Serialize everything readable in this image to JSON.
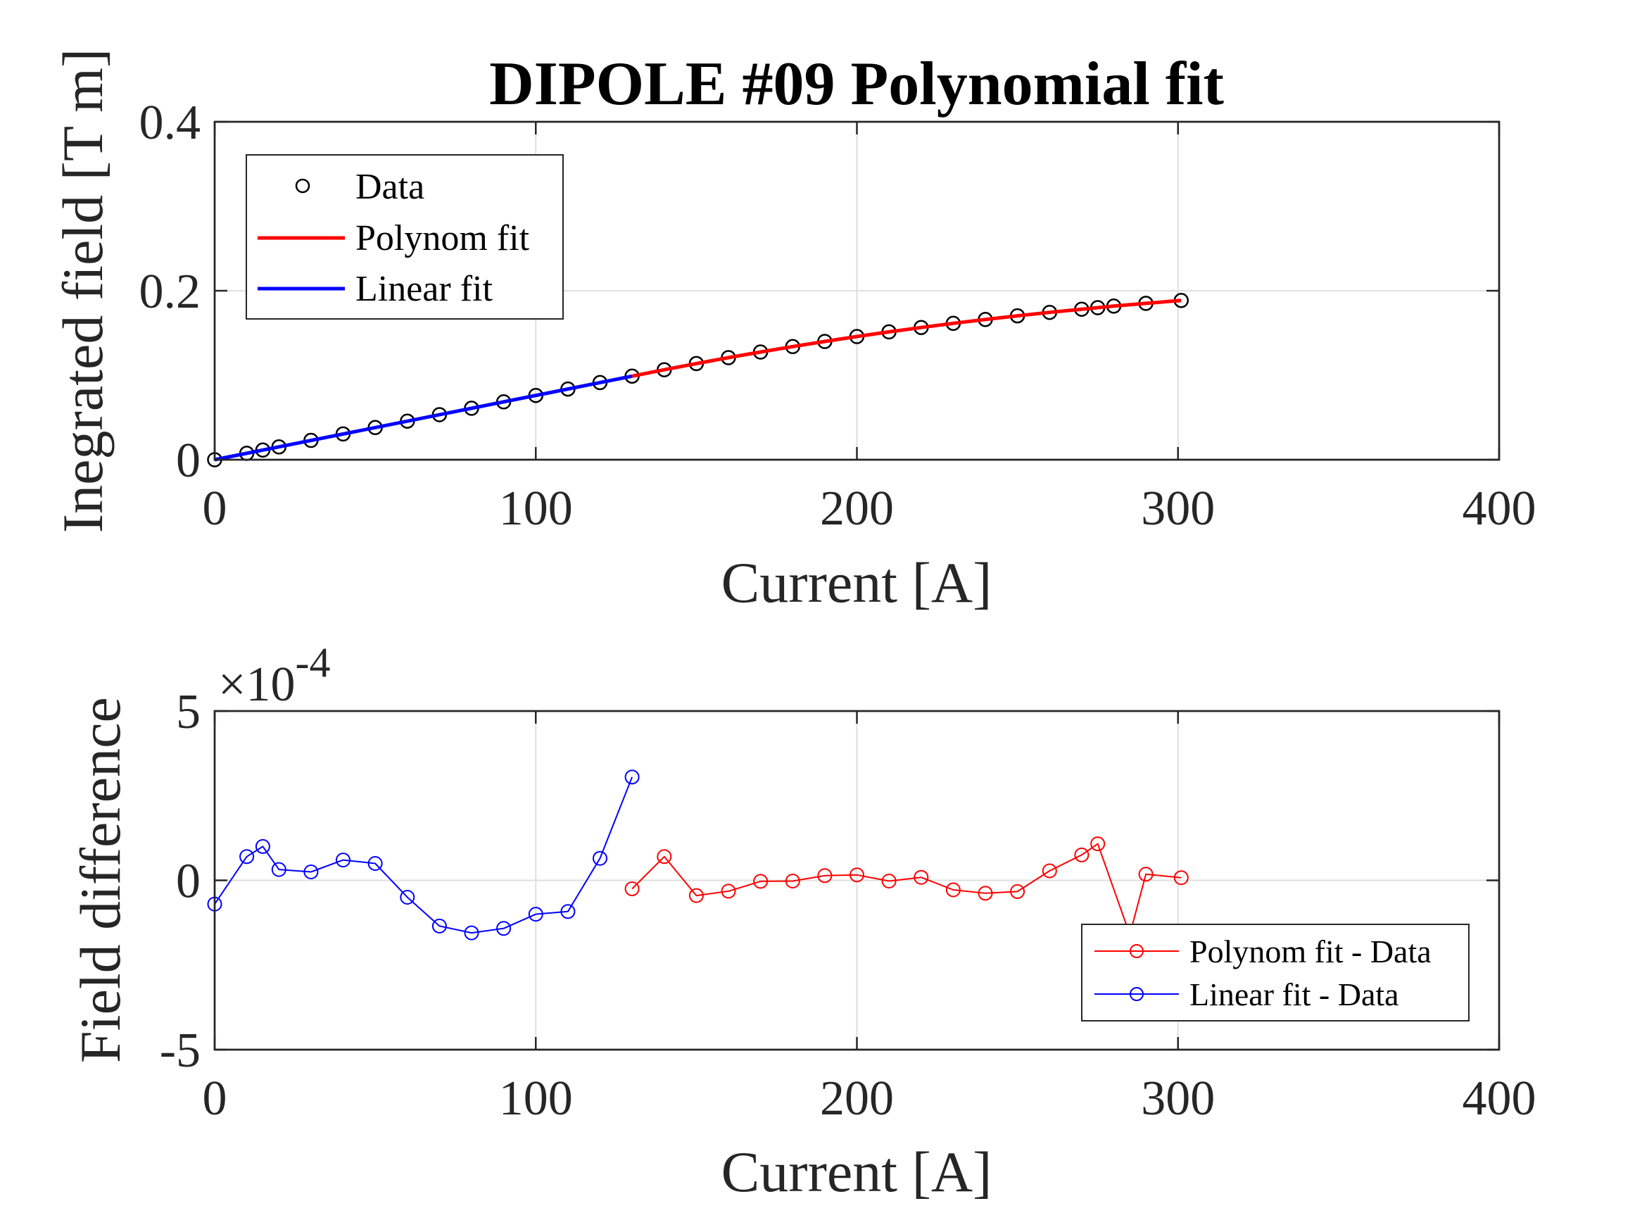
{
  "chart_data": [
    {
      "type": "line",
      "title": "DIPOLE #09 Polynomial fit",
      "xlabel": "Current [A]",
      "ylabel": "Inegrated field [T m]",
      "xlim": [
        0,
        400
      ],
      "ylim": [
        0,
        0.4
      ],
      "xticks": [
        "0",
        "100",
        "200",
        "300",
        "400"
      ],
      "yticks": [
        "0",
        "0.2",
        "0.4"
      ],
      "grid": true,
      "legend_position": "top-left",
      "series": [
        {
          "name": "Data",
          "style": "markers",
          "color": "#000000",
          "x": [
            0,
            10,
            15,
            20,
            30,
            40,
            50,
            60,
            70,
            80,
            90,
            100,
            110,
            120,
            130,
            140,
            150,
            160,
            170,
            180,
            190,
            200,
            210,
            220,
            230,
            240,
            250,
            260,
            270,
            275,
            280,
            290,
            301
          ],
          "y": [
            0.0,
            0.0076,
            0.0114,
            0.0152,
            0.0229,
            0.0305,
            0.0381,
            0.0457,
            0.0533,
            0.0609,
            0.0685,
            0.0761,
            0.0837,
            0.0913,
            0.0989,
            0.1065,
            0.1138,
            0.1208,
            0.1275,
            0.1339,
            0.14,
            0.1458,
            0.1513,
            0.1565,
            0.1614,
            0.166,
            0.1703,
            0.1744,
            0.1782,
            0.18,
            0.1818,
            0.1851,
            0.1885
          ]
        },
        {
          "name": "Polynom fit",
          "style": "line",
          "color": "#ff0000",
          "x": [
            130,
            140,
            150,
            160,
            170,
            180,
            190,
            200,
            210,
            220,
            230,
            240,
            250,
            260,
            270,
            280,
            290,
            301
          ],
          "y": [
            0.0989,
            0.1065,
            0.1138,
            0.1208,
            0.1275,
            0.1339,
            0.14,
            0.1458,
            0.1513,
            0.1565,
            0.1614,
            0.166,
            0.1703,
            0.1744,
            0.1782,
            0.1818,
            0.1851,
            0.1885
          ]
        },
        {
          "name": "Linear fit",
          "style": "line",
          "color": "#0000ff",
          "x": [
            0,
            130
          ],
          "y": [
            0.0,
            0.0989
          ]
        }
      ]
    },
    {
      "type": "line",
      "title": "",
      "xlabel": "Current [A]",
      "ylabel": "Field difference",
      "exponent_label": "×10",
      "exponent_power": "-4",
      "xlim": [
        0,
        400
      ],
      "ylim": [
        -5,
        5
      ],
      "y_scale_factor": "1e-4",
      "xticks": [
        "0",
        "100",
        "200",
        "300",
        "400"
      ],
      "yticks": [
        "-5",
        "0",
        "5"
      ],
      "grid": true,
      "legend_position": "bottom-right",
      "series": [
        {
          "name": "Polynom fit - Data",
          "style": "line+markers",
          "color": "#ff0000",
          "x": [
            130,
            140,
            150,
            160,
            170,
            180,
            190,
            200,
            210,
            220,
            230,
            240,
            250,
            260,
            270,
            275,
            285,
            290,
            301
          ],
          "y": [
            -0.25,
            0.7,
            -0.45,
            -0.32,
            -0.03,
            -0.02,
            0.14,
            0.16,
            -0.02,
            0.09,
            -0.28,
            -0.38,
            -0.33,
            0.28,
            0.75,
            1.08,
            -1.6,
            0.18,
            0.08
          ]
        },
        {
          "name": "Linear fit - Data",
          "style": "line+markers",
          "color": "#0000ff",
          "x": [
            0,
            10,
            15,
            20,
            30,
            40,
            50,
            60,
            70,
            80,
            90,
            100,
            110,
            120,
            130
          ],
          "y": [
            -0.7,
            0.7,
            1.0,
            0.32,
            0.25,
            0.6,
            0.5,
            -0.5,
            -1.35,
            -1.55,
            -1.42,
            -1.0,
            -0.92,
            0.65,
            3.05
          ]
        }
      ]
    }
  ]
}
